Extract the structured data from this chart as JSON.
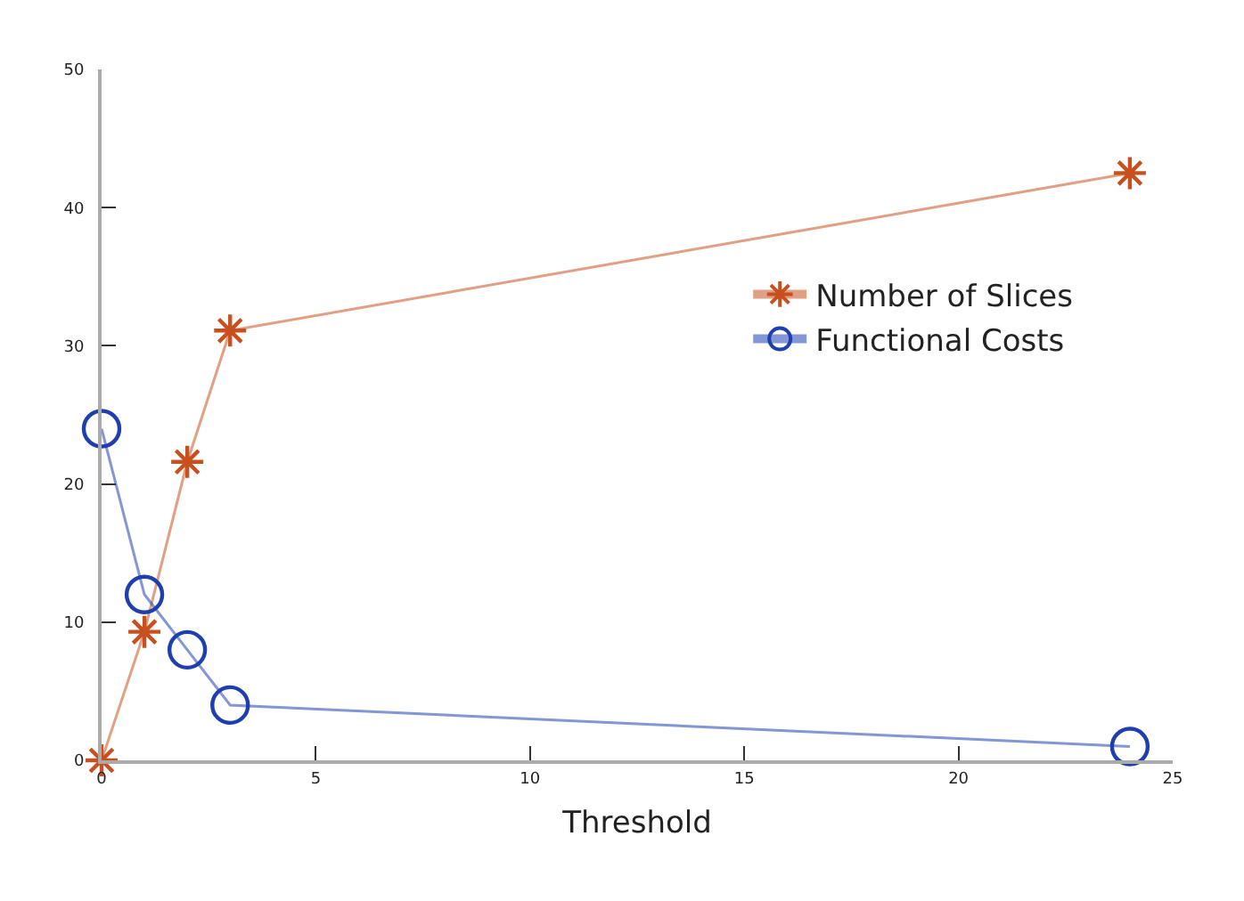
{
  "chart_data": {
    "type": "line",
    "xlabel": "Threshold",
    "x": [
      0,
      1,
      2,
      3,
      24
    ],
    "series": [
      {
        "name": "Number of Slices",
        "color": "#c8501e",
        "marker": "cross",
        "values": [
          0,
          9.3,
          21.6,
          31.1,
          42.5
        ]
      },
      {
        "name": "Functional Costs",
        "color": "#1f3fae",
        "marker": "circle",
        "values": [
          24,
          12,
          8,
          4,
          1
        ]
      }
    ],
    "xlim": [
      0,
      25
    ],
    "xticks": [
      0,
      5,
      10,
      15,
      20,
      25
    ],
    "ylim": [
      0,
      50
    ],
    "yticks": [
      0,
      10,
      20,
      30,
      40,
      50
    ],
    "grid": false,
    "legend": "right",
    "line_style": "solid"
  }
}
